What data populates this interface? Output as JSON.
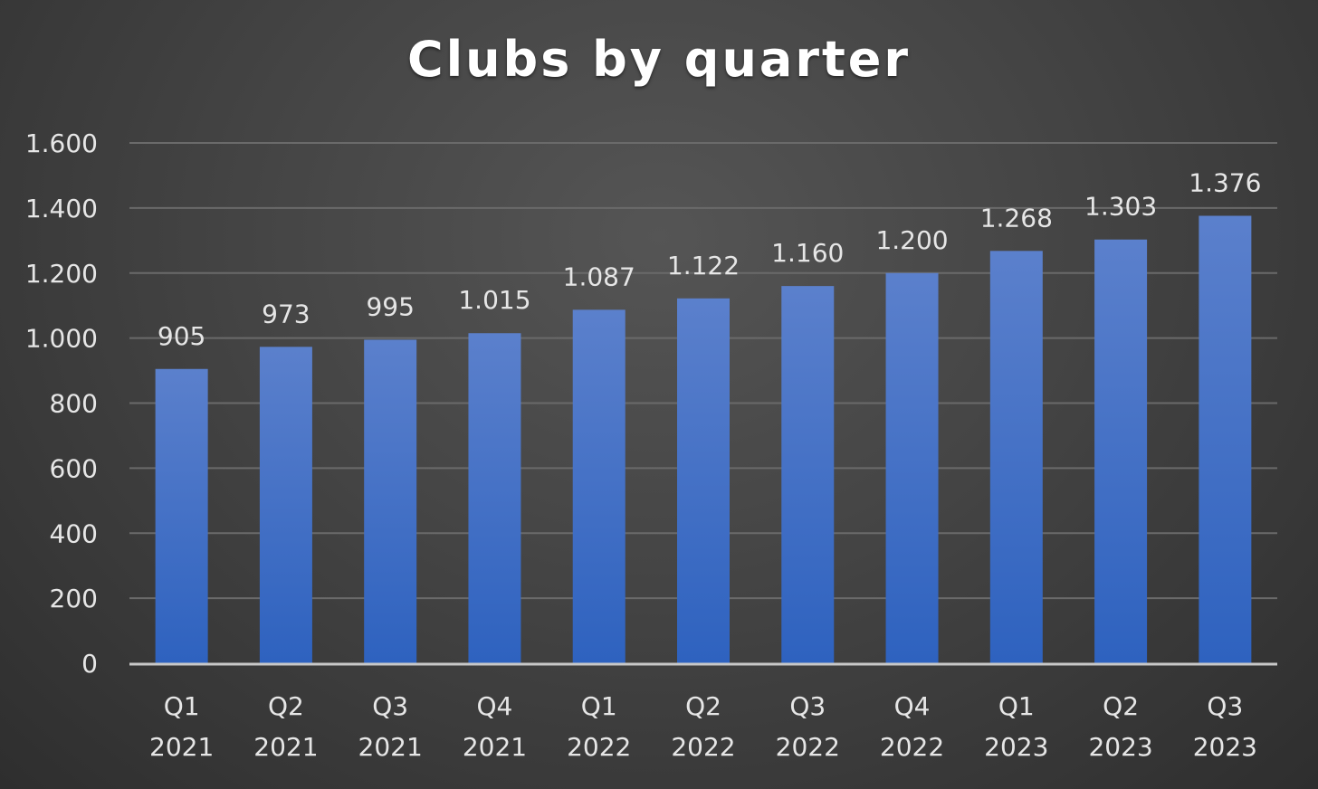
{
  "chart_data": {
    "type": "bar",
    "title": "Clubs by quarter",
    "categories": [
      [
        "Q1",
        "2021"
      ],
      [
        "Q2",
        "2021"
      ],
      [
        "Q3",
        "2021"
      ],
      [
        "Q4",
        "2021"
      ],
      [
        "Q1",
        "2022"
      ],
      [
        "Q2",
        "2022"
      ],
      [
        "Q3",
        "2022"
      ],
      [
        "Q4",
        "2022"
      ],
      [
        "Q1",
        "2023"
      ],
      [
        "Q2",
        "2023"
      ],
      [
        "Q3",
        "2023"
      ]
    ],
    "values": [
      905,
      973,
      995,
      1015,
      1087,
      1122,
      1160,
      1200,
      1268,
      1303,
      1376
    ],
    "value_labels": [
      "905",
      "973",
      "995",
      "1.015",
      "1.087",
      "1.122",
      "1.160",
      "1.200",
      "1.268",
      "1.303",
      "1.376"
    ],
    "y_ticks": [
      0,
      200,
      400,
      600,
      800,
      1000,
      1200,
      1400,
      1600
    ],
    "y_tick_labels": [
      "0",
      "200",
      "400",
      "600",
      "800",
      "1.000",
      "1.200",
      "1.400",
      "1.600"
    ],
    "ylim": [
      0,
      1600
    ],
    "xlabel": "",
    "ylabel": "",
    "grid": true,
    "legend": false,
    "colors": {
      "bar_top": "#5b80cc",
      "bar_bottom": "#2e62bf",
      "gridline": "#6a6a6a",
      "axis_line": "#c8c8c8"
    }
  }
}
